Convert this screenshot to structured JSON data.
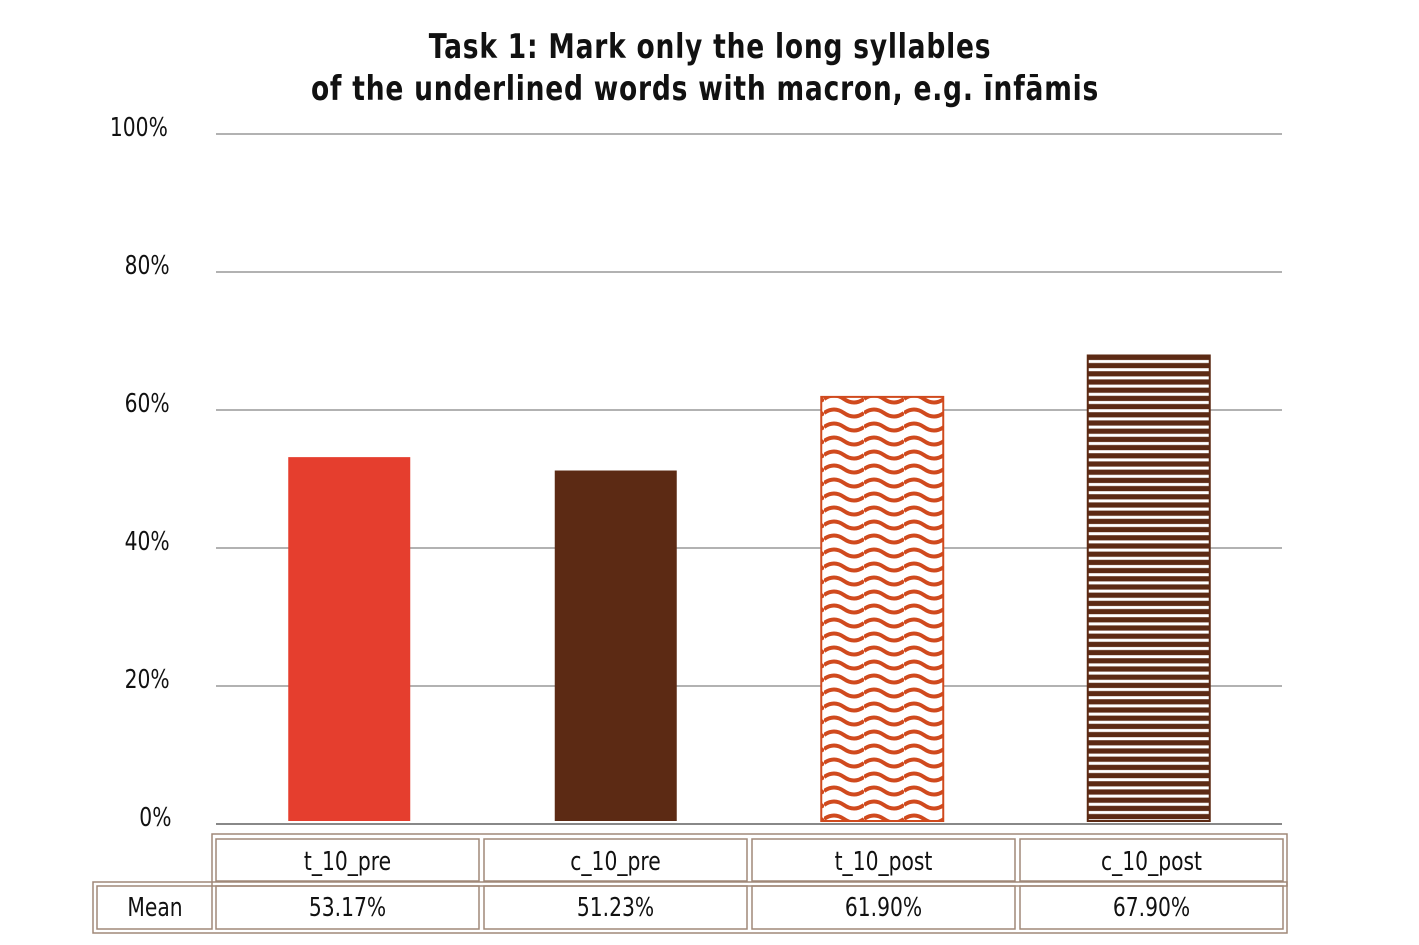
{
  "chart_data": {
    "type": "bar",
    "title": [
      "Task 1: Mark only the long syllables",
      "of the underlined words with macron, e.g. īnfāmis"
    ],
    "categories": [
      "t_10_pre",
      "c_10_pre",
      "t_10_post",
      "c_10_post"
    ],
    "values": [
      53.17,
      51.23,
      61.9,
      67.9
    ],
    "ylim": [
      0,
      100
    ],
    "yticks": [
      "0%",
      "20%",
      "40%",
      "60%",
      "80%",
      "100%"
    ],
    "grid": true,
    "bar_styles": [
      {
        "color": "#e53e2e",
        "fill": "solid"
      },
      {
        "color": "#5c2a14",
        "fill": "solid"
      },
      {
        "color": "#d04a1e",
        "fill": "wave"
      },
      {
        "color": "#5c2a14",
        "fill": "horizontal-stripes"
      }
    ],
    "data_table": {
      "row_label": "Mean",
      "values": [
        "53.17%",
        "51.23%",
        "61.90%",
        "67.90%"
      ]
    }
  }
}
